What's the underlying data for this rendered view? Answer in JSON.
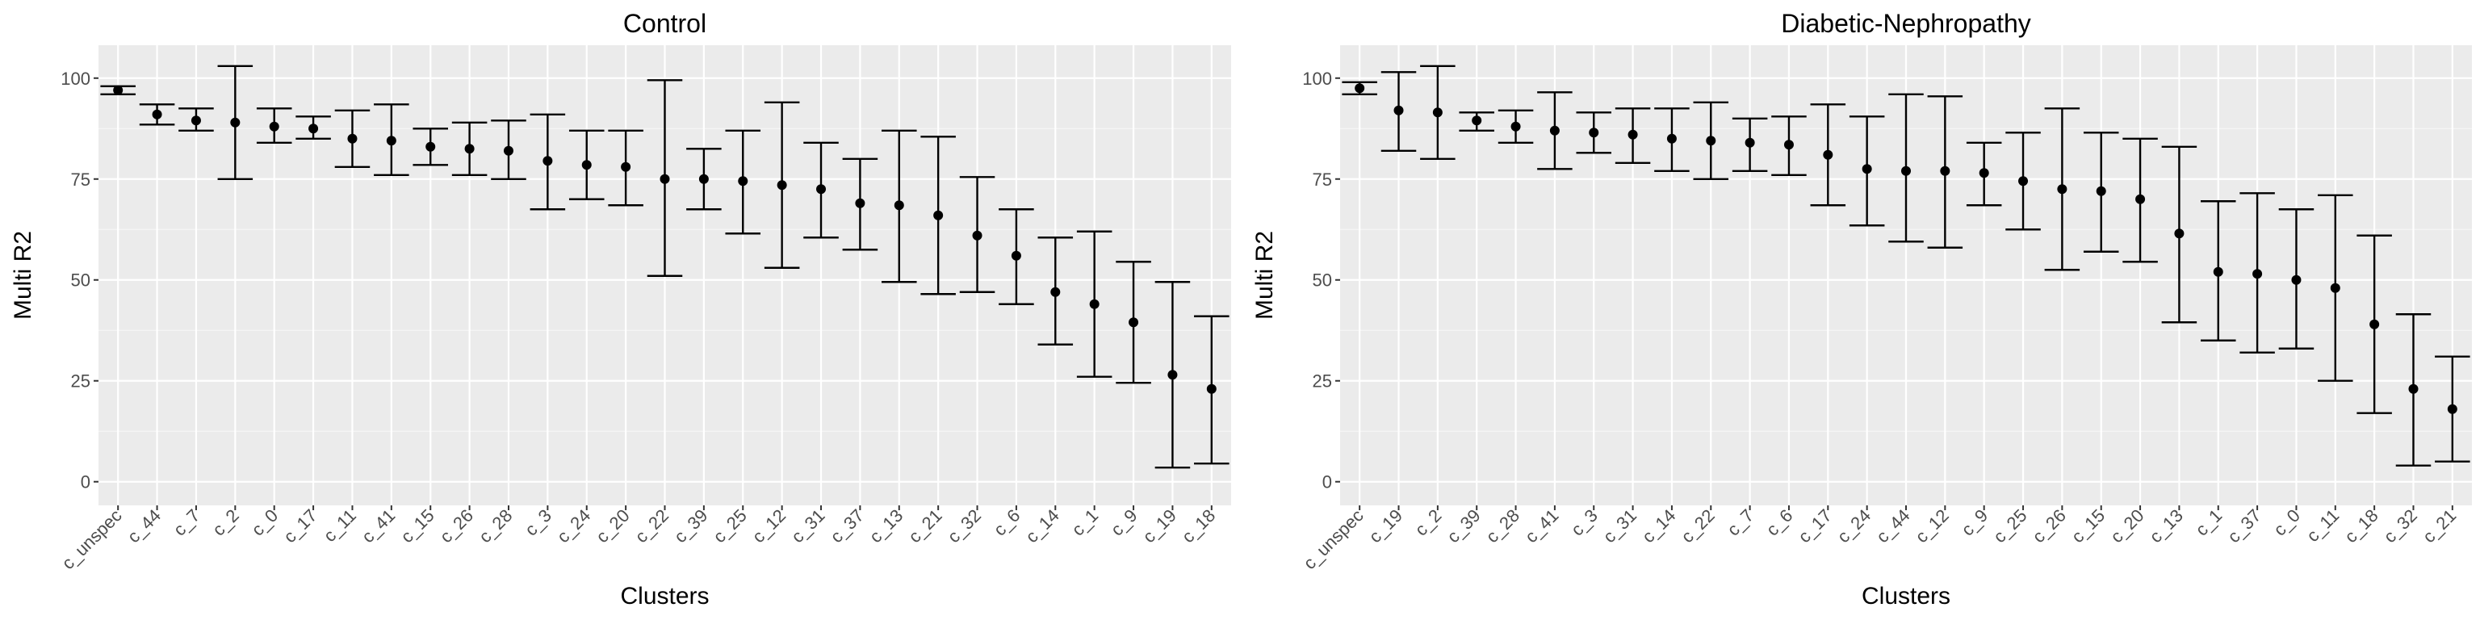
{
  "chart_data": [
    {
      "type": "scatter",
      "title": "Control",
      "xlabel": "Clusters",
      "ylabel": "Multi R2",
      "ylim": [
        0,
        100
      ],
      "yticks": [
        0,
        25,
        50,
        75,
        100
      ],
      "grid": true,
      "categories": [
        "c_unspec",
        "c_44",
        "c_7",
        "c_2",
        "c_0",
        "c_17",
        "c_11",
        "c_41",
        "c_15",
        "c_26",
        "c_28",
        "c_3",
        "c_24",
        "c_20",
        "c_22",
        "c_39",
        "c_25",
        "c_12",
        "c_31",
        "c_37",
        "c_13",
        "c_21",
        "c_32",
        "c_6",
        "c_14",
        "c_1",
        "c_9",
        "c_19",
        "c_18"
      ],
      "values": [
        97,
        91,
        89.5,
        89,
        88,
        87.5,
        85,
        84.5,
        83,
        82.5,
        82,
        79.5,
        78.5,
        78,
        75,
        75,
        74.5,
        73.5,
        72.5,
        69,
        68.5,
        66,
        61,
        56,
        47,
        44,
        39.5,
        26.5,
        23
      ],
      "lower": [
        96,
        88.5,
        87,
        75,
        84,
        85,
        78,
        76,
        78.5,
        76,
        75,
        67.5,
        70,
        68.5,
        51,
        67.5,
        61.5,
        53,
        60.5,
        57.5,
        49.5,
        46.5,
        47,
        44,
        34,
        26,
        24.5,
        3.5,
        4.5
      ],
      "upper": [
        98,
        93.5,
        92.5,
        103,
        92.5,
        90.5,
        92,
        93.5,
        87.5,
        89,
        89.5,
        91,
        87,
        87,
        99.5,
        82.5,
        87,
        94,
        84,
        80,
        87,
        85.5,
        75.5,
        67.5,
        60.5,
        62,
        54.5,
        49.5,
        41
      ]
    },
    {
      "type": "scatter",
      "title": "Diabetic-Nephropathy",
      "xlabel": "Clusters",
      "ylabel": "Multi R2",
      "ylim": [
        0,
        100
      ],
      "yticks": [
        0,
        25,
        50,
        75,
        100
      ],
      "grid": true,
      "categories": [
        "c_unspec",
        "c_19",
        "c_2",
        "c_39",
        "c_28",
        "c_41",
        "c_3",
        "c_31",
        "c_14",
        "c_22",
        "c_7",
        "c_6",
        "c_17",
        "c_24",
        "c_44",
        "c_12",
        "c_9",
        "c_25",
        "c_26",
        "c_15",
        "c_20",
        "c_13",
        "c_1",
        "c_37",
        "c_0",
        "c_11",
        "c_18",
        "c_32",
        "c_21"
      ],
      "values": [
        97.5,
        92,
        91.5,
        89.5,
        88,
        87,
        86.5,
        86,
        85,
        84.5,
        84,
        83.5,
        81,
        77.5,
        77,
        77,
        76.5,
        74.5,
        72.5,
        72,
        70,
        61.5,
        52,
        51.5,
        50,
        48,
        39,
        23,
        18
      ],
      "lower": [
        96,
        82,
        80,
        87,
        84,
        77.5,
        81.5,
        79,
        77,
        75,
        77,
        76,
        68.5,
        63.5,
        59.5,
        58,
        68.5,
        62.5,
        52.5,
        57,
        54.5,
        39.5,
        35,
        32,
        33,
        25,
        17,
        4,
        5
      ],
      "upper": [
        99,
        101.5,
        103,
        91.5,
        92,
        96.5,
        91.5,
        92.5,
        92.5,
        94,
        90,
        90.5,
        93.5,
        90.5,
        96,
        95.5,
        84,
        86.5,
        92.5,
        86.5,
        85,
        83,
        69.5,
        71.5,
        67.5,
        71,
        61,
        41.5,
        31
      ]
    }
  ]
}
